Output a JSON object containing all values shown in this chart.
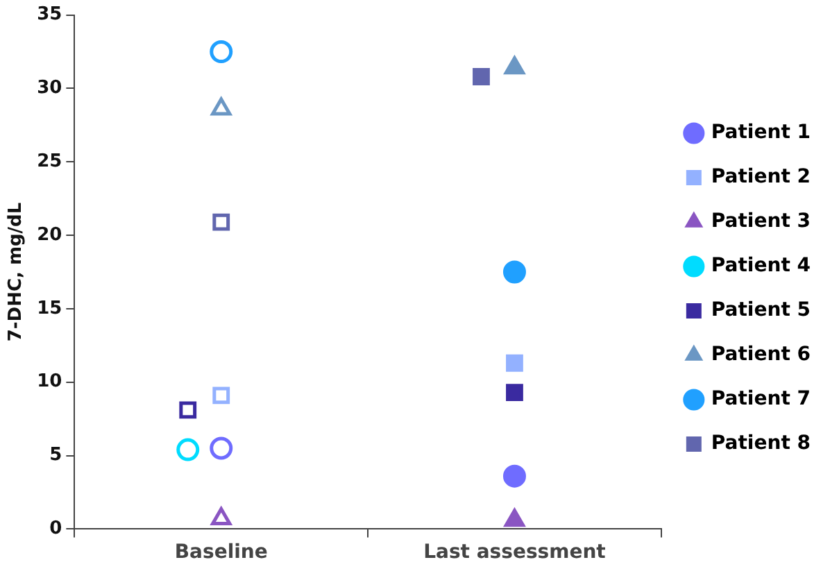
{
  "chart_data": {
    "type": "scatter",
    "ylabel": "7-DHC, mg/dL",
    "categories": [
      "Baseline",
      "Last assessment"
    ],
    "ylim": [
      0,
      35
    ],
    "yticks": [
      0,
      5,
      10,
      15,
      20,
      25,
      30,
      35
    ],
    "grid": false,
    "legend": "right",
    "series": [
      {
        "name": "Patient 1",
        "color": "#6f6cff",
        "marker": "circle",
        "values": [
          5.5,
          3.6
        ]
      },
      {
        "name": "Patient 2",
        "color": "#93b1ff",
        "marker": "square",
        "values": [
          9.1,
          11.3
        ]
      },
      {
        "name": "Patient 3",
        "color": "#8a55c2",
        "marker": "triangle",
        "values": [
          0.7,
          0.6
        ]
      },
      {
        "name": "Patient 4",
        "color": "#00dcff",
        "marker": "circle",
        "values": [
          5.4,
          null
        ]
      },
      {
        "name": "Patient 5",
        "color": "#3a2aa0",
        "marker": "square",
        "values": [
          8.1,
          9.3
        ]
      },
      {
        "name": "Patient 6",
        "color": "#6b97c4",
        "marker": "triangle",
        "values": [
          28.6,
          31.4
        ]
      },
      {
        "name": "Patient 7",
        "color": "#20a0ff",
        "marker": "circle",
        "values": [
          32.5,
          17.5
        ]
      },
      {
        "name": "Patient 8",
        "color": "#6166ae",
        "marker": "square",
        "values": [
          20.9,
          30.8
        ]
      }
    ]
  }
}
